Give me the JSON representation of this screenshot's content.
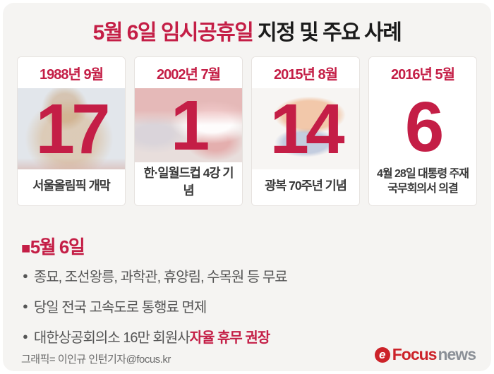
{
  "title": {
    "highlight": "5월 6일 임시공휴일",
    "rest": " 지정 및 주요 사례"
  },
  "cards": [
    {
      "month": "1988년 9월",
      "day": "17",
      "caption": "서울올림픽 개막",
      "photo": "hodori-olympic-mascot"
    },
    {
      "month": "2002년 7월",
      "day": "1",
      "caption": "한·일월드컵 4강 기념",
      "photo": "worldcup-celebration"
    },
    {
      "month": "2015년 8월",
      "day": "14",
      "caption": "광복 70주년 기념",
      "photo": "taegeuk-symbol"
    },
    {
      "month": "2016년 5월",
      "day": "6",
      "caption": "4월 28일 대통령 주재 국무회의서 의결",
      "photo": "none"
    }
  ],
  "section": {
    "marker": "■",
    "heading": "5월 6일",
    "items": [
      {
        "text": "종묘, 조선왕릉, 과학관, 휴양림, 수목원 등 무료",
        "highlight": ""
      },
      {
        "text": "당일 전국 고속도로 통행료 면제",
        "highlight": ""
      },
      {
        "text": "대한상공회의소 16만 회원사 ",
        "highlight": "자율 휴무 권장"
      }
    ]
  },
  "footer": {
    "credit": "그래픽= 이인규 인턴기자@focus.kr",
    "logo": {
      "icon_glyph": "e",
      "brand": "Focus",
      "suffix": "news"
    }
  },
  "colors": {
    "accent_crimson": "#c41e46",
    "logo_red": "#cc2229",
    "logo_gray": "#8b9097",
    "title_black": "#1b1b1b",
    "body_gray": "#555555",
    "panel_bg": "#f5f4f2"
  }
}
